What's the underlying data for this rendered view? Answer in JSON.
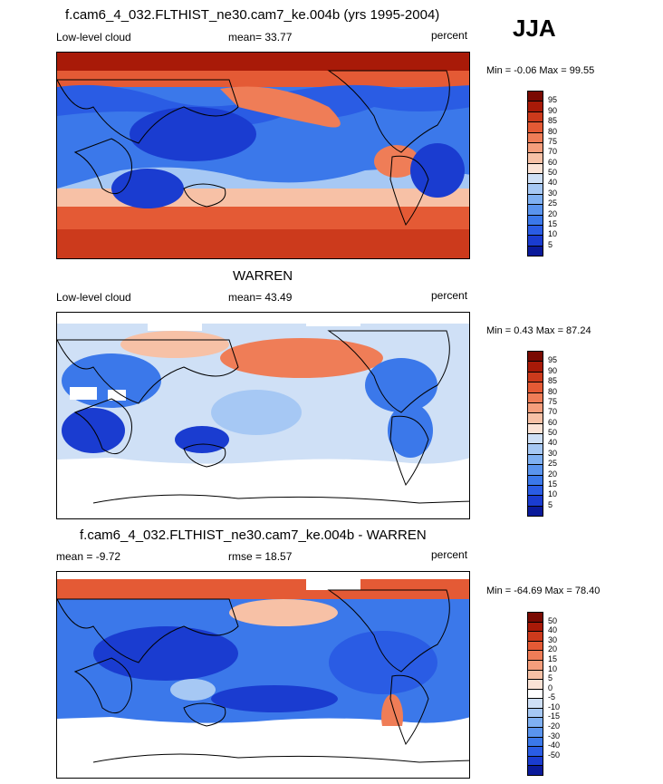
{
  "season": "JJA",
  "panels": [
    {
      "title": "f.cam6_4_032.FLTHIST_ne30.cam7_ke.004b (yrs 1995-2004)",
      "left_label": "Low-level cloud",
      "center_label": "mean=  33.77",
      "right_label": "percent",
      "minmax": "Min =  -0.06 Max =  99.55",
      "colorbar": {
        "colors": [
          "#0a1a9a",
          "#1a3cd0",
          "#2a5ce4",
          "#3b78ea",
          "#5a94ee",
          "#7fb0f2",
          "#a6c8f4",
          "#cfe0f6",
          "#fbe3d6",
          "#f7c1a6",
          "#f59e7c",
          "#ef7d57",
          "#e45a35",
          "#cc3a1c",
          "#a81a08",
          "#7a0a02"
        ],
        "ticks": [
          "95",
          "90",
          "85",
          "80",
          "75",
          "70",
          "60",
          "50",
          "40",
          "30",
          "25",
          "20",
          "15",
          "10",
          "5"
        ]
      }
    },
    {
      "title": "WARREN",
      "left_label": "Low-level cloud",
      "center_label": "mean=  43.49",
      "right_label": "percent",
      "minmax": "Min =   0.43 Max =  87.24",
      "colorbar": {
        "colors": [
          "#0a1a9a",
          "#1a3cd0",
          "#2a5ce4",
          "#3b78ea",
          "#5a94ee",
          "#7fb0f2",
          "#a6c8f4",
          "#cfe0f6",
          "#fbe3d6",
          "#f7c1a6",
          "#f59e7c",
          "#ef7d57",
          "#e45a35",
          "#cc3a1c",
          "#a81a08",
          "#7a0a02"
        ],
        "ticks": [
          "95",
          "90",
          "85",
          "80",
          "75",
          "70",
          "60",
          "50",
          "40",
          "30",
          "25",
          "20",
          "15",
          "10",
          "5"
        ]
      }
    },
    {
      "title": "f.cam6_4_032.FLTHIST_ne30.cam7_ke.004b - WARREN",
      "left_label": "mean =  -9.72",
      "center_label": "rmse =  18.57",
      "right_label": "percent",
      "minmax": "Min = -64.69 Max =  78.40",
      "colorbar": {
        "colors": [
          "#0a1a9a",
          "#1a3cd0",
          "#2a5ce4",
          "#3b78ea",
          "#5a94ee",
          "#7fb0f2",
          "#a6c8f4",
          "#cfe0f6",
          "#ffffff",
          "#fbe3d6",
          "#f7c1a6",
          "#f59e7c",
          "#ef7d57",
          "#e45a35",
          "#cc3a1c",
          "#a81a08",
          "#7a0a02"
        ],
        "ticks": [
          "50",
          "40",
          "30",
          "20",
          "15",
          "10",
          "5",
          "0",
          "-5",
          "-10",
          "-15",
          "-20",
          "-30",
          "-40",
          "-50"
        ]
      }
    }
  ],
  "chart_data": [
    {
      "type": "heatmap",
      "title": "f.cam6_4_032.FLTHIST_ne30.cam7_ke.004b (yrs 1995-2004)",
      "subtitle": "Low-level cloud",
      "units": "percent",
      "mean": 33.77,
      "min": -0.06,
      "max": 99.55,
      "levels": [
        5,
        10,
        15,
        20,
        25,
        30,
        40,
        50,
        60,
        70,
        75,
        80,
        85,
        90,
        95
      ]
    },
    {
      "type": "heatmap",
      "title": "WARREN",
      "subtitle": "Low-level cloud",
      "units": "percent",
      "mean": 43.49,
      "min": 0.43,
      "max": 87.24,
      "levels": [
        5,
        10,
        15,
        20,
        25,
        30,
        40,
        50,
        60,
        70,
        75,
        80,
        85,
        90,
        95
      ]
    },
    {
      "type": "heatmap",
      "title": "f.cam6_4_032.FLTHIST_ne30.cam7_ke.004b - WARREN",
      "units": "percent",
      "mean": -9.72,
      "rmse": 18.57,
      "min": -64.69,
      "max": 78.4,
      "levels": [
        -50,
        -40,
        -30,
        -20,
        -15,
        -10,
        -5,
        0,
        5,
        10,
        15,
        20,
        30,
        40,
        50
      ]
    }
  ]
}
